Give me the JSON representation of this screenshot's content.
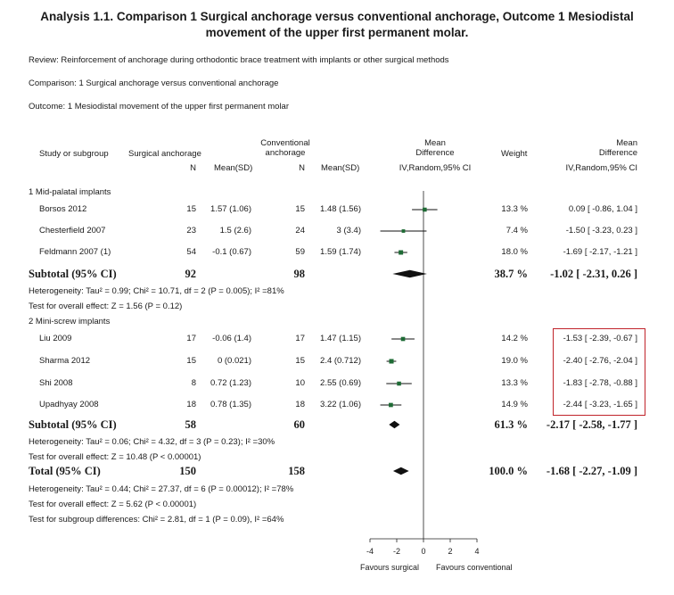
{
  "title": {
    "line1": "Analysis 1.1.   Comparison 1 Surgical anchorage versus conventional anchorage, Outcome 1 Mesiodistal",
    "line2": "movement of the upper first permanent molar."
  },
  "meta": {
    "review": "Review:    Reinforcement of anchorage during orthodontic brace treatment with implants or other surgical methods",
    "comparison": "Comparison:    1 Surgical anchorage versus conventional anchorage",
    "outcome": "Outcome:    1 Mesiodistal movement of the upper first permanent molar"
  },
  "headers": {
    "study": "Study or subgroup",
    "surgical": "Surgical anchorage",
    "conventional_1": "Conventional",
    "conventional_2": "anchorage",
    "n": "N",
    "mean_sd": "Mean(SD)",
    "md_1": "Mean",
    "md_2": "Difference",
    "md_3": "IV,Random,95% CI",
    "weight": "Weight",
    "md2_1": "Mean",
    "md2_2": "Difference",
    "md2_3": "IV,Random,95% CI"
  },
  "groups": [
    {
      "label": "1 Mid-palatal implants",
      "studies": [
        {
          "name": "Borsos 2012",
          "n1": "15",
          "msd1": "1.57 (1.06)",
          "n2": "15",
          "msd2": "1.48 (1.56)",
          "weight": "13.3 %",
          "ci": "0.09 [ -0.86, 1.04 ]"
        },
        {
          "name": "Chesterfield 2007",
          "n1": "23",
          "msd1": "1.5 (2.6)",
          "n2": "24",
          "msd2": "3 (3.4)",
          "weight": "7.4 %",
          "ci": "-1.50 [ -3.23, 0.23 ]"
        },
        {
          "name": "Feldmann 2007 (1)",
          "n1": "54",
          "msd1": "-0.1 (0.67)",
          "n2": "59",
          "msd2": "1.59 (1.74)",
          "weight": "18.0 %",
          "ci": "-1.69 [ -2.17, -1.21 ]"
        }
      ],
      "subtotal": {
        "label": "Subtotal (95% CI)",
        "n1": "92",
        "n2": "98",
        "weight": "38.7 %",
        "ci": "-1.02 [ -2.31, 0.26 ]"
      },
      "heterogeneity": "Heterogeneity: Tau² = 0.99; Chi² = 10.71, df = 2 (P = 0.005); I² =81%",
      "overall": "Test for overall effect: Z = 1.56 (P = 0.12)"
    },
    {
      "label": "2 Mini-screw implants",
      "studies": [
        {
          "name": "Liu 2009",
          "n1": "17",
          "msd1": "-0.06 (1.4)",
          "n2": "17",
          "msd2": "1.47 (1.15)",
          "weight": "14.2 %",
          "ci": "-1.53 [ -2.39, -0.67 ]"
        },
        {
          "name": "Sharma 2012",
          "n1": "15",
          "msd1": "0 (0.021)",
          "n2": "15",
          "msd2": "2.4 (0.712)",
          "weight": "19.0 %",
          "ci": "-2.40 [ -2.76, -2.04 ]"
        },
        {
          "name": "Shi 2008",
          "n1": "8",
          "msd1": "0.72 (1.23)",
          "n2": "10",
          "msd2": "2.55 (0.69)",
          "weight": "13.3 %",
          "ci": "-1.83 [ -2.78, -0.88 ]"
        },
        {
          "name": "Upadhyay 2008",
          "n1": "18",
          "msd1": "0.78 (1.35)",
          "n2": "18",
          "msd2": "3.22 (1.06)",
          "weight": "14.9 %",
          "ci": "-2.44 [ -3.23, -1.65 ]"
        }
      ],
      "subtotal": {
        "label": "Subtotal (95% CI)",
        "n1": "58",
        "n2": "60",
        "weight": "61.3 %",
        "ci": "-2.17 [ -2.58, -1.77 ]"
      },
      "heterogeneity": "Heterogeneity: Tau² = 0.06; Chi² = 4.32, df = 3 (P = 0.23); I² =30%",
      "overall": "Test for overall effect: Z = 10.48 (P < 0.00001)"
    }
  ],
  "total": {
    "label": "Total (95% CI)",
    "n1": "150",
    "n2": "158",
    "weight": "100.0 %",
    "ci": "-1.68 [ -2.27, -1.09 ]"
  },
  "total_notes": {
    "heterogeneity": "Heterogeneity: Tau² = 0.44; Chi² = 27.37, df = 6 (P = 0.00012); I² =78%",
    "overall": "Test for overall effect: Z = 5.62 (P < 0.00001)",
    "subgroup": "Test for subgroup differences: Chi² = 2.81, df = 1 (P = 0.09), I² =64%"
  },
  "axis": {
    "favours_left": "Favours surgical",
    "favours_right": "Favours conventional"
  },
  "colors": {
    "marker": "#1e6b35",
    "highlight_box": "#c0232a",
    "text": "#1a1a1a"
  },
  "chart_data": {
    "type": "forest",
    "x_ticks": [
      -4,
      -2,
      0,
      2,
      4
    ],
    "xlim": [
      -4,
      4
    ],
    "studies": [
      {
        "name": "Borsos 2012",
        "md": 0.09,
        "lo": -0.86,
        "hi": 1.04,
        "weight": 13.3
      },
      {
        "name": "Chesterfield 2007",
        "md": -1.5,
        "lo": -3.23,
        "hi": 0.23,
        "weight": 7.4
      },
      {
        "name": "Feldmann 2007 (1)",
        "md": -1.69,
        "lo": -2.17,
        "hi": -1.21,
        "weight": 18.0
      },
      {
        "name": "Liu 2009",
        "md": -1.53,
        "lo": -2.39,
        "hi": -0.67,
        "weight": 14.2
      },
      {
        "name": "Sharma 2012",
        "md": -2.4,
        "lo": -2.76,
        "hi": -2.04,
        "weight": 19.0
      },
      {
        "name": "Shi 2008",
        "md": -1.83,
        "lo": -2.78,
        "hi": -0.88,
        "weight": 13.3
      },
      {
        "name": "Upadhyay 2008",
        "md": -2.44,
        "lo": -3.23,
        "hi": -1.65,
        "weight": 14.9
      }
    ],
    "subtotals": [
      {
        "name": "Subtotal 1",
        "md": -1.02,
        "lo": -2.31,
        "hi": 0.26
      },
      {
        "name": "Subtotal 2",
        "md": -2.17,
        "lo": -2.58,
        "hi": -1.77
      },
      {
        "name": "Total",
        "md": -1.68,
        "lo": -2.27,
        "hi": -1.09
      }
    ]
  }
}
